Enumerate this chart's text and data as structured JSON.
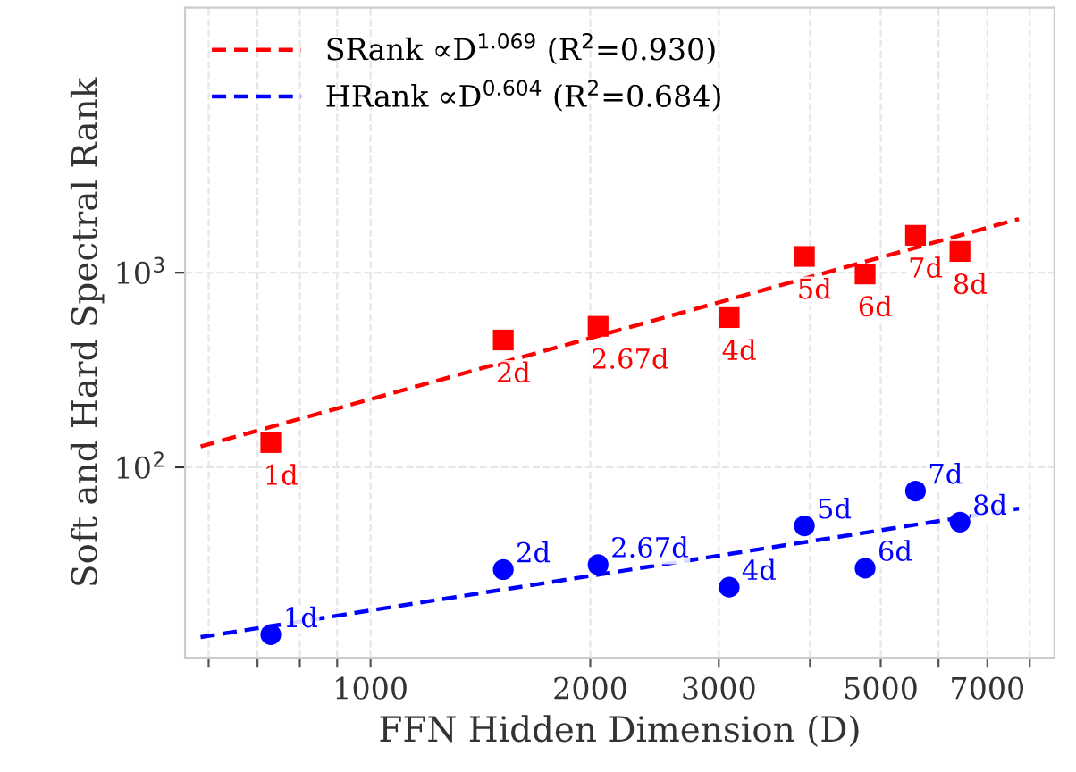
{
  "chart_data": {
    "type": "scatter",
    "xlabel": "FFN Hidden Dimension (D)",
    "ylabel": "Soft and Hard Spectral Rank",
    "log": "xy",
    "xlim": [
      557,
      8650
    ],
    "ylim": [
      10.5,
      23000
    ],
    "xticks": [
      {
        "value": 600,
        "label": null
      },
      {
        "value": 700,
        "label": null
      },
      {
        "value": 800,
        "label": null
      },
      {
        "value": 900,
        "label": null
      },
      1000,
      2000,
      3000,
      {
        "value": 4000,
        "label": null
      },
      5000,
      {
        "value": 6000,
        "label": null
      },
      7000,
      {
        "value": 8000,
        "label": null
      }
    ],
    "yticks": [
      {
        "value": 100,
        "label": "10$^{2}$"
      },
      {
        "value": 1000,
        "label": "10$^{3}$"
      }
    ],
    "grid": true,
    "legend": "top left",
    "series": [
      {
        "color": "#ff0000",
        "marker": "square",
        "x": [
          730,
          1520,
          2050,
          3100,
          3930,
          4760,
          5580,
          6420
        ],
        "values": [
          134,
          451,
          530,
          588,
          1212,
          985,
          1557,
          1285
        ]
      },
      {
        "type": "scatter",
        "color": "#0000ff",
        "marker": "circle",
        "x": [
          730,
          1520,
          2050,
          3100,
          3930,
          4760,
          5580,
          6420
        ],
        "values": [
          13.8,
          29.8,
          31.6,
          24.2,
          50,
          30.3,
          75.5,
          52.3
        ]
      },
      {
        "type": "line",
        "name": "SRank ∝D$^{1.069}$ (R$^{2}$=0.930)",
        "color": "#ff0000",
        "line_style": "dashed",
        "x": [
          585,
          7730
        ],
        "values": [
          128,
          1888
        ]
      },
      {
        "type": "line",
        "name": "HRank ∝D$^{0.604}$ (R$^{2}$=0.684)",
        "color": "#0000ff",
        "line_style": "dashed",
        "x": [
          585,
          7730
        ],
        "values": [
          13.4,
          61.4
        ]
      }
    ],
    "annotations": [
      {
        "text": "1d",
        "x": 730,
        "y": 134
      },
      {
        "text": "2d",
        "x": 1520,
        "y": 451
      },
      {
        "text": "2.67d",
        "x": 2050,
        "y": 530
      },
      {
        "text": "4d",
        "x": 3100,
        "y": 588
      },
      {
        "text": "5d",
        "x": 3930,
        "y": 1212
      },
      {
        "text": "6d",
        "x": 4760,
        "y": 985
      },
      {
        "text": "7d",
        "x": 5580,
        "y": 1557
      },
      {
        "text": "8d",
        "x": 6420,
        "y": 1285
      },
      {
        "text": "1d",
        "x": 730,
        "y": 13.8
      },
      {
        "text": "2d",
        "x": 1520,
        "y": 29.8
      },
      {
        "text": "2.67d",
        "x": 2050,
        "y": 31.6
      },
      {
        "text": "4d",
        "x": 3100,
        "y": 24.2
      },
      {
        "text": "5d",
        "x": 3930,
        "y": 50
      },
      {
        "text": "6d",
        "x": 4760,
        "y": 30.3
      },
      {
        "text": "7d",
        "x": 5580,
        "y": 75.5
      },
      {
        "text": "8d",
        "x": 6420,
        "y": 52.3
      }
    ]
  }
}
